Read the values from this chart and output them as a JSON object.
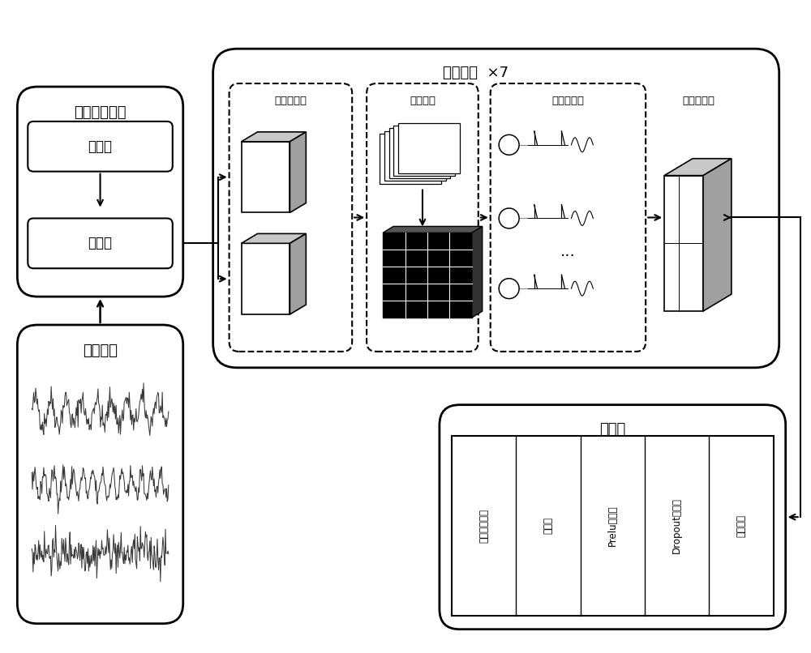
{
  "bg": "#ffffff",
  "lbl": {
    "data_proc": "数据处理模块",
    "downsample": "下采样",
    "norm1": "归一化",
    "signal": "信号数据",
    "conv_mod": "卷积模块  ×7",
    "complex_conv": "复数卷积层",
    "bn": "归一化层",
    "snn": "脉冲神经层",
    "maxpool": "最大池化层",
    "cls": "分类头",
    "adap": "自适应池化层",
    "linear": "线性层",
    "prelu": "Prelu激活层",
    "dropout": "Dropout激活层",
    "fc": "全连接层"
  }
}
